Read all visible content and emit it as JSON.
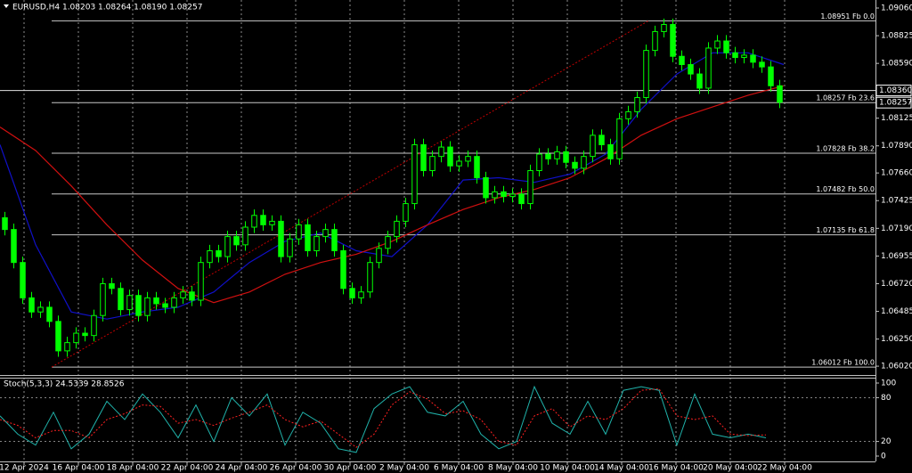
{
  "chart_data": [
    {
      "type": "candlestick",
      "title": "EURUSD,H4  1.08203 1.08264 1.08190 1.08257",
      "color": "#00ff00",
      "open": [
        1.0728,
        1.0718,
        1.069,
        1.066,
        1.0648,
        1.0652,
        1.064,
        1.0615,
        1.0622,
        1.063,
        1.0628,
        1.0645,
        1.0672,
        1.0668,
        1.065,
        1.0662,
        1.0645,
        1.066,
        1.0655,
        1.0652,
        1.066,
        1.0665,
        1.0658,
        1.069,
        1.07,
        1.0695,
        1.0712,
        1.0705,
        1.072,
        1.073,
        1.0722,
        1.0725,
        1.0695,
        1.071,
        1.0722,
        1.07,
        1.0712,
        1.0718,
        1.07,
        1.0668,
        1.066,
        1.0665,
        1.069,
        1.0702,
        1.0712,
        1.0725,
        1.074,
        1.079,
        1.0768,
        1.078,
        1.0788,
        1.0772,
        1.0776,
        1.078,
        1.0762,
        1.0745,
        1.075,
        1.0746,
        1.0748,
        1.074,
        1.0768,
        1.0782,
        1.0778,
        1.0784,
        1.0775,
        1.077,
        1.078,
        1.0798,
        1.079,
        1.0778,
        1.0812,
        1.0818,
        1.083,
        1.087,
        1.0886,
        1.0892,
        1.0865,
        1.0858,
        1.085,
        1.0838,
        1.0872,
        1.0878,
        1.0868,
        1.0864,
        1.0866,
        1.086,
        1.0856,
        1.084
      ],
      "high": [
        1.0733,
        1.0723,
        1.0695,
        1.0665,
        1.0657,
        1.0657,
        1.0645,
        1.0627,
        1.0635,
        1.0635,
        1.065,
        1.0677,
        1.0677,
        1.0673,
        1.0667,
        1.0667,
        1.0665,
        1.0665,
        1.066,
        1.0665,
        1.067,
        1.067,
        1.0695,
        1.0705,
        1.0705,
        1.0717,
        1.0717,
        1.0725,
        1.0735,
        1.0735,
        1.073,
        1.073,
        1.0715,
        1.0727,
        1.0727,
        1.0717,
        1.0723,
        1.0723,
        1.0705,
        1.0673,
        1.067,
        1.0695,
        1.0707,
        1.0717,
        1.073,
        1.0745,
        1.0795,
        1.0795,
        1.0785,
        1.0793,
        1.0793,
        1.0781,
        1.0785,
        1.0785,
        1.0767,
        1.0755,
        1.0755,
        1.0753,
        1.0753,
        1.0773,
        1.0787,
        1.0787,
        1.0789,
        1.0789,
        1.078,
        1.0785,
        1.0803,
        1.0803,
        1.0795,
        1.0817,
        1.0823,
        1.0835,
        1.0875,
        1.0891,
        1.0897,
        1.0897,
        1.087,
        1.0863,
        1.0855,
        1.0877,
        1.0883,
        1.0883,
        1.0873,
        1.0871,
        1.0871,
        1.0865,
        1.0861,
        1.0845
      ],
      "low": [
        1.0713,
        1.0685,
        1.0655,
        1.0643,
        1.0643,
        1.0635,
        1.061,
        1.061,
        1.0617,
        1.0623,
        1.0623,
        1.064,
        1.0663,
        1.0645,
        1.0645,
        1.064,
        1.064,
        1.065,
        1.0647,
        1.0647,
        1.0655,
        1.0653,
        1.0653,
        1.0685,
        1.069,
        1.069,
        1.07,
        1.07,
        1.0715,
        1.0717,
        1.0717,
        1.069,
        1.069,
        1.0705,
        1.0695,
        1.0695,
        1.0707,
        1.0695,
        1.0663,
        1.0655,
        1.0655,
        1.066,
        1.0685,
        1.0697,
        1.0707,
        1.072,
        1.0735,
        1.0763,
        1.0763,
        1.0775,
        1.0767,
        1.0767,
        1.0771,
        1.0757,
        1.074,
        1.074,
        1.0741,
        1.0741,
        1.0735,
        1.0735,
        1.0763,
        1.0773,
        1.0773,
        1.077,
        1.0765,
        1.0765,
        1.0775,
        1.0785,
        1.0773,
        1.0773,
        1.0807,
        1.0813,
        1.0825,
        1.0865,
        1.0881,
        1.086,
        1.0853,
        1.0845,
        1.0833,
        1.0833,
        1.0867,
        1.0863,
        1.0859,
        1.0859,
        1.0855,
        1.0851,
        1.0835,
        1.0821
      ],
      "close": [
        1.0718,
        1.069,
        1.066,
        1.0648,
        1.0652,
        1.064,
        1.0615,
        1.0622,
        1.063,
        1.0628,
        1.0645,
        1.0672,
        1.0668,
        1.065,
        1.0662,
        1.0645,
        1.066,
        1.0655,
        1.0652,
        1.066,
        1.0665,
        1.0658,
        1.069,
        1.07,
        1.0695,
        1.0712,
        1.0705,
        1.072,
        1.073,
        1.0722,
        1.0725,
        1.0695,
        1.071,
        1.0722,
        1.07,
        1.0712,
        1.0718,
        1.07,
        1.0668,
        1.066,
        1.0665,
        1.069,
        1.0702,
        1.0712,
        1.0725,
        1.074,
        1.079,
        1.0768,
        1.078,
        1.0788,
        1.0772,
        1.0776,
        1.078,
        1.0762,
        1.0745,
        1.075,
        1.0746,
        1.0748,
        1.074,
        1.0768,
        1.0782,
        1.0778,
        1.0784,
        1.0775,
        1.077,
        1.078,
        1.0798,
        1.079,
        1.0778,
        1.0812,
        1.0818,
        1.083,
        1.087,
        1.0886,
        1.0892,
        1.0865,
        1.0858,
        1.085,
        1.0838,
        1.0872,
        1.0878,
        1.0868,
        1.0864,
        1.0866,
        1.086,
        1.0856,
        1.084,
        1.0826
      ],
      "moving_averages": [
        {
          "color": "#1010c8",
          "x": [
            0,
            4,
            8,
            12,
            16,
            20,
            24,
            28,
            32,
            36,
            40,
            44,
            48,
            52,
            56,
            60,
            64,
            68,
            72,
            76,
            80,
            84,
            88
          ],
          "values": [
            1.079,
            1.0705,
            1.0648,
            1.0642,
            1.0648,
            1.0652,
            1.0665,
            1.069,
            1.0708,
            1.0715,
            1.07,
            1.0695,
            1.0722,
            1.076,
            1.0762,
            1.0758,
            1.0765,
            1.0782,
            1.082,
            1.085,
            1.0868,
            1.0868,
            1.0858
          ]
        },
        {
          "color": "#d01010",
          "x": [
            0,
            4,
            8,
            12,
            16,
            20,
            24,
            28,
            32,
            36,
            40,
            44,
            48,
            52,
            56,
            60,
            64,
            68,
            72,
            76,
            80,
            84,
            88
          ],
          "values": [
            1.0805,
            1.0785,
            1.0755,
            1.0722,
            1.0692,
            1.0668,
            1.0656,
            1.0665,
            1.068,
            1.069,
            1.0697,
            1.0708,
            1.0722,
            1.0735,
            1.0745,
            1.0752,
            1.0762,
            1.0778,
            1.0798,
            1.0812,
            1.0822,
            1.0832,
            1.084
          ]
        }
      ],
      "trendline": {
        "color": "#c00000",
        "x": [
          5.8,
          72.8
        ],
        "values": [
          1.06012,
          1.08951
        ]
      },
      "fib_levels": {
        "color": "#c8c8c8",
        "x_start": 5.8,
        "levels": [
          {
            "value": 1.08951,
            "label": "1.08951 Fb 0.0"
          },
          {
            "value": 1.08257,
            "label": "1.08257 Fb 23.6"
          },
          {
            "value": 1.07828,
            "label": "1.07828 Fb 38.2"
          },
          {
            "value": 1.07482,
            "label": "1.07482 Fb 50.0"
          },
          {
            "value": 1.07135,
            "label": "1.07135 Fb 61.8"
          },
          {
            "value": 1.06012,
            "label": "1.06012 Fb 100.0"
          }
        ]
      },
      "hline": {
        "value": 1.0836,
        "label": "1.08360"
      },
      "bid": {
        "value": 1.08257,
        "label": "1.08257"
      },
      "xlim": [
        0,
        98.3
      ],
      "ylim": [
        1.05945,
        1.09128
      ],
      "yticks": [
        {
          "value": 1.0906,
          "label": "1.09060"
        },
        {
          "value": 1.08825,
          "label": "1.08825"
        },
        {
          "value": 1.0859,
          "label": "1.08590"
        },
        {
          "value": 1.08125,
          "label": "1.08125"
        },
        {
          "value": 1.0789,
          "label": "1.07890"
        },
        {
          "value": 1.0766,
          "label": "1.07660"
        },
        {
          "value": 1.07425,
          "label": "1.07425"
        },
        {
          "value": 1.0719,
          "label": "1.07190"
        },
        {
          "value": 1.06955,
          "label": "1.06955"
        },
        {
          "value": 1.0672,
          "label": "1.06720"
        },
        {
          "value": 1.06485,
          "label": "1.06485"
        },
        {
          "value": 1.0625,
          "label": "1.06250"
        },
        {
          "value": 1.0602,
          "label": "1.06020"
        }
      ],
      "xticks": [
        {
          "value": 2.7,
          "label": "12 Apr 2024"
        },
        {
          "value": 8.8,
          "label": "16 Apr 04:00"
        },
        {
          "value": 14.9,
          "label": "18 Apr 04:00"
        },
        {
          "value": 21.0,
          "label": "22 Apr 04:00"
        },
        {
          "value": 27.1,
          "label": "24 Apr 04:00"
        },
        {
          "value": 33.2,
          "label": "26 Apr 04:00"
        },
        {
          "value": 39.3,
          "label": "30 Apr 04:00"
        },
        {
          "value": 45.4,
          "label": "2 May 04:00"
        },
        {
          "value": 51.5,
          "label": "6 May 04:00"
        },
        {
          "value": 57.6,
          "label": "8 May 04:00"
        },
        {
          "value": 63.7,
          "label": "10 May 04:00"
        },
        {
          "value": 69.8,
          "label": "14 May 04:00"
        },
        {
          "value": 75.9,
          "label": "16 May 04:00"
        },
        {
          "value": 82.0,
          "label": "20 May 04:00"
        },
        {
          "value": 88.1,
          "label": "22 May 04:00"
        }
      ],
      "grid": "x"
    },
    {
      "type": "line",
      "title": "Stoch(5,3,3) 24.5339 28.8526",
      "x": [
        0,
        2,
        4,
        6,
        8,
        10,
        12,
        14,
        16,
        18,
        20,
        22,
        24,
        26,
        28,
        30,
        32,
        34,
        36,
        38,
        40,
        42,
        44,
        46,
        48,
        50,
        52,
        54,
        56,
        58,
        60,
        62,
        64,
        66,
        68,
        70,
        72,
        74,
        76,
        78,
        80,
        82,
        84,
        86
      ],
      "series": [
        {
          "color": "#20b2aa",
          "values": [
            55,
            30,
            15,
            60,
            10,
            30,
            75,
            50,
            85,
            60,
            25,
            70,
            20,
            80,
            55,
            85,
            15,
            60,
            45,
            10,
            5,
            65,
            85,
            95,
            60,
            55,
            75,
            30,
            10,
            20,
            95,
            45,
            30,
            75,
            30,
            90,
            95,
            90,
            15,
            85,
            30,
            25,
            30,
            25
          ]
        },
        {
          "color": "#ff2020",
          "dashed": true,
          "values": [
            50,
            42,
            25,
            35,
            35,
            25,
            50,
            58,
            70,
            68,
            45,
            50,
            42,
            52,
            60,
            70,
            50,
            40,
            48,
            30,
            12,
            30,
            70,
            88,
            78,
            58,
            62,
            50,
            20,
            15,
            55,
            65,
            40,
            55,
            50,
            65,
            90,
            92,
            55,
            50,
            55,
            30,
            28,
            29
          ]
        }
      ],
      "xlim": [
        0,
        98.3
      ],
      "ylim": [
        -7.3,
        107.3
      ],
      "yticks": [
        0,
        20,
        80,
        100
      ],
      "levels": [
        20,
        80
      ]
    }
  ]
}
